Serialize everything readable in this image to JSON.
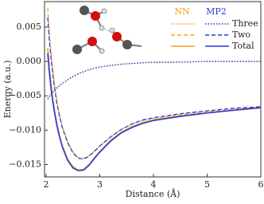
{
  "chart_data": {
    "type": "line",
    "xlabel": "Distance (Å)",
    "ylabel": "Energy (a.u.)",
    "xlim": [
      1.97,
      6
    ],
    "ylim": [
      -0.0168,
      0.0087
    ],
    "xticks": [
      2,
      3,
      4,
      5,
      6
    ],
    "yticks": [
      {
        "value": 0.005,
        "label": "0.005"
      },
      {
        "value": 0,
        "label": "0.000"
      },
      {
        "value": -0.005,
        "label": "−0.005"
      },
      {
        "value": -0.01,
        "label": "−0.010"
      },
      {
        "value": -0.015,
        "label": "−0.015"
      }
    ],
    "models": [
      {
        "name": "NN",
        "color": "#f5a31a"
      },
      {
        "name": "MP2",
        "color": "#2438e0"
      }
    ],
    "x": [
      2.03,
      2.06,
      2.1,
      2.15,
      2.2,
      2.25,
      2.3,
      2.4,
      2.5,
      2.6,
      2.7,
      2.8,
      2.9,
      3.0,
      3.2,
      3.4,
      3.6,
      3.8,
      4.0,
      4.5,
      5.0,
      5.5,
      6.0
    ],
    "series": [
      {
        "name": "Three",
        "dash": "dotted",
        "values": [
          [
            -0.0054,
            -0.005,
            -0.0046,
            -0.0042,
            -0.0038,
            -0.0035,
            -0.0032,
            -0.0027,
            -0.0022,
            -0.0018,
            -0.0015,
            -0.0012,
            -0.001,
            -0.0008,
            -0.0006,
            -0.0004,
            -0.0003,
            -0.0002,
            -0.0002,
            -0.0001,
            0,
            0,
            0
          ],
          [
            -0.0055,
            -0.0051,
            -0.0047,
            -0.0043,
            -0.0039,
            -0.0035,
            -0.0032,
            -0.0027,
            -0.0022,
            -0.0018,
            -0.0015,
            -0.0012,
            -0.001,
            -0.0008,
            -0.0006,
            -0.0004,
            -0.0003,
            -0.0002,
            -0.0001,
            -0.0001,
            0,
            0,
            0
          ]
        ]
      },
      {
        "name": "Two",
        "dash": "dashed",
        "values": [
          [
            0.0078,
            0.004,
            0.0005,
            -0.003,
            -0.0058,
            -0.0078,
            -0.0095,
            -0.0117,
            -0.0132,
            -0.014,
            -0.0141,
            -0.0137,
            -0.013,
            -0.0123,
            -0.011,
            -0.0099,
            -0.0091,
            -0.0086,
            -0.0083,
            -0.0077,
            -0.0073,
            -0.0069,
            -0.0067
          ],
          [
            0.0064,
            0.003,
            -0.0002,
            -0.0035,
            -0.0061,
            -0.008,
            -0.0096,
            -0.0118,
            -0.0133,
            -0.0141,
            -0.0142,
            -0.0138,
            -0.0131,
            -0.0123,
            -0.011,
            -0.0099,
            -0.0091,
            -0.0085,
            -0.0082,
            -0.0076,
            -0.0072,
            -0.0068,
            -0.0066
          ]
        ]
      },
      {
        "name": "Total",
        "dash": "solid",
        "values": [
          [
            0.002,
            -0.001,
            -0.004,
            -0.0068,
            -0.009,
            -0.0108,
            -0.0122,
            -0.0142,
            -0.0153,
            -0.0158,
            -0.0157,
            -0.015,
            -0.014,
            -0.0131,
            -0.0115,
            -0.0103,
            -0.0095,
            -0.0089,
            -0.0085,
            -0.0079,
            -0.0075,
            -0.0071,
            -0.0068
          ],
          [
            0.0012,
            -0.0016,
            -0.0045,
            -0.0072,
            -0.0093,
            -0.011,
            -0.0124,
            -0.0144,
            -0.0155,
            -0.0159,
            -0.0158,
            -0.0151,
            -0.0141,
            -0.0132,
            -0.0116,
            -0.0104,
            -0.0096,
            -0.009,
            -0.0086,
            -0.008,
            -0.0075,
            -0.0071,
            -0.0067
          ]
        ]
      }
    ]
  }
}
